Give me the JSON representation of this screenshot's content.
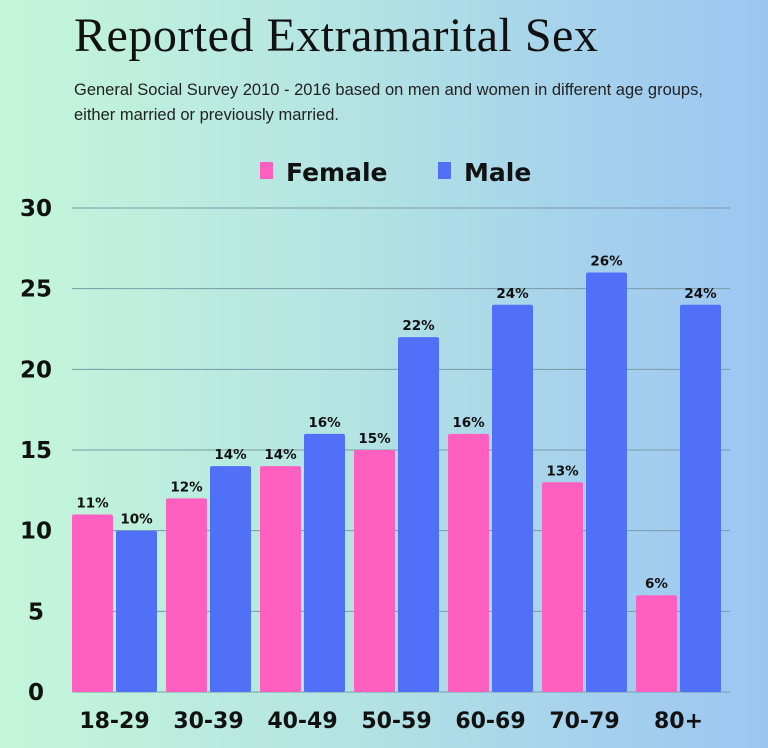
{
  "chart_data": {
    "type": "bar",
    "title": "Reported Extramarital Sex",
    "subtitle": "General Social Survey 2010 - 2016 based on men and women in different age groups, either married or previously married.",
    "categories": [
      "18-29",
      "30-39",
      "40-49",
      "50-59",
      "60-69",
      "70-79",
      "80+"
    ],
    "series": [
      {
        "name": "Female",
        "color": "#ff5fbf",
        "values": [
          11,
          12,
          14,
          15,
          16,
          13,
          6
        ]
      },
      {
        "name": "Male",
        "color": "#5070f8",
        "values": [
          10,
          14,
          16,
          22,
          24,
          26,
          24
        ]
      }
    ],
    "data_label_suffix": "%",
    "ylim": [
      0,
      30
    ],
    "yticks": [
      0,
      5,
      10,
      15,
      20,
      25,
      30
    ],
    "grid": true,
    "legend_placement": "top-center",
    "xlabel": "",
    "ylabel": ""
  }
}
